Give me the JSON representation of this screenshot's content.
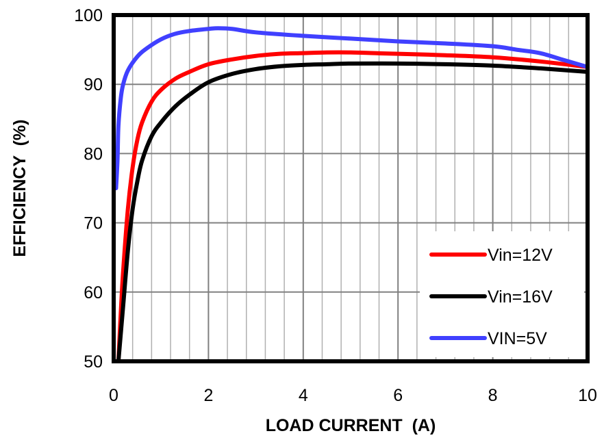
{
  "chart_data": {
    "type": "line",
    "title": "",
    "xlabel": "LOAD CURRENT  (A)",
    "ylabel": "EFFICIENCY  (%)",
    "xlim": [
      0,
      10
    ],
    "ylim": [
      50,
      100
    ],
    "x_ticks": [
      "0",
      "2",
      "4",
      "6",
      "8",
      "10"
    ],
    "y_ticks": [
      "50",
      "60",
      "70",
      "80",
      "90",
      "100"
    ],
    "grid": true,
    "legend_position": "bottom-right",
    "series": [
      {
        "name": "Vin=12V",
        "color": "#ff0000",
        "x": [
          0.1,
          0.15,
          0.2,
          0.3,
          0.4,
          0.5,
          0.6,
          0.8,
          1.0,
          1.3,
          1.6,
          2.0,
          2.5,
          3.0,
          3.5,
          4.0,
          4.5,
          5.0,
          5.5,
          6.0,
          7.0,
          8.0,
          9.0,
          10.0
        ],
        "y": [
          50,
          57,
          63,
          72,
          78,
          82,
          84.5,
          87.5,
          89.2,
          90.8,
          91.8,
          92.9,
          93.6,
          94.1,
          94.4,
          94.5,
          94.6,
          94.6,
          94.5,
          94.4,
          94.2,
          93.9,
          93.3,
          92.5
        ]
      },
      {
        "name": "Vin=16V",
        "color": "#000000",
        "x": [
          0.1,
          0.15,
          0.2,
          0.3,
          0.4,
          0.5,
          0.6,
          0.8,
          1.0,
          1.3,
          1.6,
          2.0,
          2.5,
          3.0,
          3.5,
          4.0,
          4.5,
          5.0,
          6.0,
          7.0,
          8.0,
          9.0,
          10.0
        ],
        "y": [
          50,
          54,
          58,
          66,
          72,
          76,
          79,
          82.5,
          84.5,
          86.8,
          88.5,
          90.3,
          91.5,
          92.2,
          92.6,
          92.8,
          92.9,
          93.0,
          93.0,
          92.9,
          92.7,
          92.3,
          91.8
        ]
      },
      {
        "name": "VIN=5V",
        "color": "#4040ff",
        "x": [
          0.05,
          0.08,
          0.1,
          0.15,
          0.2,
          0.3,
          0.5,
          0.7,
          1.0,
          1.3,
          1.6,
          2.0,
          2.2,
          2.5,
          3.0,
          4.0,
          5.0,
          6.0,
          7.0,
          8.0,
          8.5,
          9.0,
          9.5,
          10.0
        ],
        "y": [
          75,
          79,
          84,
          88,
          90,
          92,
          94,
          95.2,
          96.5,
          97.3,
          97.7,
          98.0,
          98.1,
          98.0,
          97.5,
          97.0,
          96.6,
          96.2,
          95.9,
          95.5,
          95.0,
          94.5,
          93.5,
          92.5
        ]
      }
    ]
  }
}
